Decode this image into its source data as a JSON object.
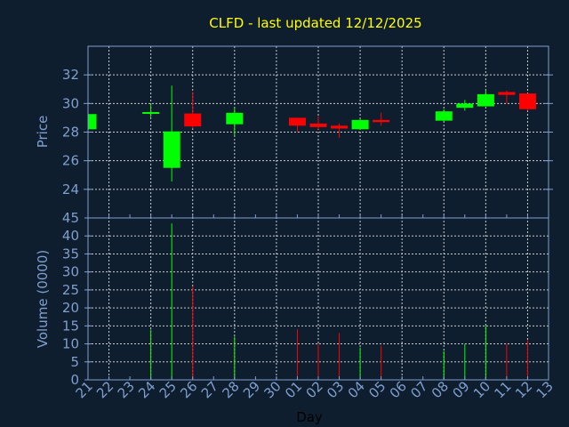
{
  "chart_data": {
    "type": "candlestick",
    "title": "CLFD - last updated 12/12/2025",
    "xlabel": "Day",
    "ylabel": "Price",
    "volume_ylabel": "Volume (0000)",
    "x_tick_labels": [
      "21",
      "22",
      "23",
      "24",
      "25",
      "26",
      "27",
      "28",
      "29",
      "30",
      "01",
      "02",
      "03",
      "04",
      "05",
      "06",
      "07",
      "08",
      "09",
      "10",
      "11",
      "12",
      "13"
    ],
    "y_ticks": [
      24,
      26,
      28,
      30,
      32
    ],
    "ylim": [
      22,
      34
    ],
    "volume_ticks": [
      0,
      5,
      10,
      15,
      20,
      25,
      30,
      35,
      40,
      45
    ],
    "volume_ylim": [
      0,
      45
    ],
    "grid": true,
    "colors": {
      "background": "#0f1e2f",
      "up": "#00ff00",
      "down": "#ff0000",
      "axis": "#7f9fcf",
      "grid": "#cccccc",
      "title": "#ffff00"
    },
    "candles": [
      {
        "day": "21",
        "open": 28.2,
        "high": 29.26,
        "low": 28.2,
        "close": 29.26,
        "volume": null
      },
      {
        "day": "24",
        "open": 29.3,
        "high": 30.0,
        "low": 29.0,
        "close": 29.4,
        "volume": 14
      },
      {
        "day": "25",
        "open": 25.5,
        "high": 31.25,
        "low": 24.55,
        "close": 28.05,
        "volume": 43.5
      },
      {
        "day": "26",
        "open": 29.3,
        "high": 30.8,
        "low": 28.25,
        "close": 28.4,
        "volume": 26
      },
      {
        "day": "28",
        "open": 28.55,
        "high": 29.7,
        "low": 27.75,
        "close": 29.35,
        "volume": 12
      },
      {
        "day": "01",
        "open": 29.0,
        "high": 29.0,
        "low": 28.0,
        "close": 28.45,
        "volume": 14
      },
      {
        "day": "02",
        "open": 28.6,
        "high": 29.1,
        "low": 28.2,
        "close": 28.35,
        "volume": 10
      },
      {
        "day": "03",
        "open": 28.45,
        "high": 28.6,
        "low": 27.6,
        "close": 28.25,
        "volume": 13
      },
      {
        "day": "04",
        "open": 28.2,
        "high": 28.9,
        "low": 28.15,
        "close": 28.85,
        "volume": 9
      },
      {
        "day": "05",
        "open": 28.85,
        "high": 29.35,
        "low": 28.45,
        "close": 28.7,
        "volume": 9.5
      },
      {
        "day": "08",
        "open": 28.8,
        "high": 29.6,
        "low": 28.75,
        "close": 29.45,
        "volume": 8
      },
      {
        "day": "09",
        "open": 29.7,
        "high": 30.25,
        "low": 29.5,
        "close": 30.0,
        "volume": 10
      },
      {
        "day": "10",
        "open": 29.8,
        "high": 30.95,
        "low": 29.8,
        "close": 30.65,
        "volume": 15
      },
      {
        "day": "11",
        "open": 30.8,
        "high": 30.9,
        "low": 30.0,
        "close": 30.6,
        "volume": 10
      },
      {
        "day": "12",
        "open": 30.7,
        "high": 30.7,
        "low": 29.5,
        "close": 29.6,
        "volume": 11
      }
    ]
  }
}
